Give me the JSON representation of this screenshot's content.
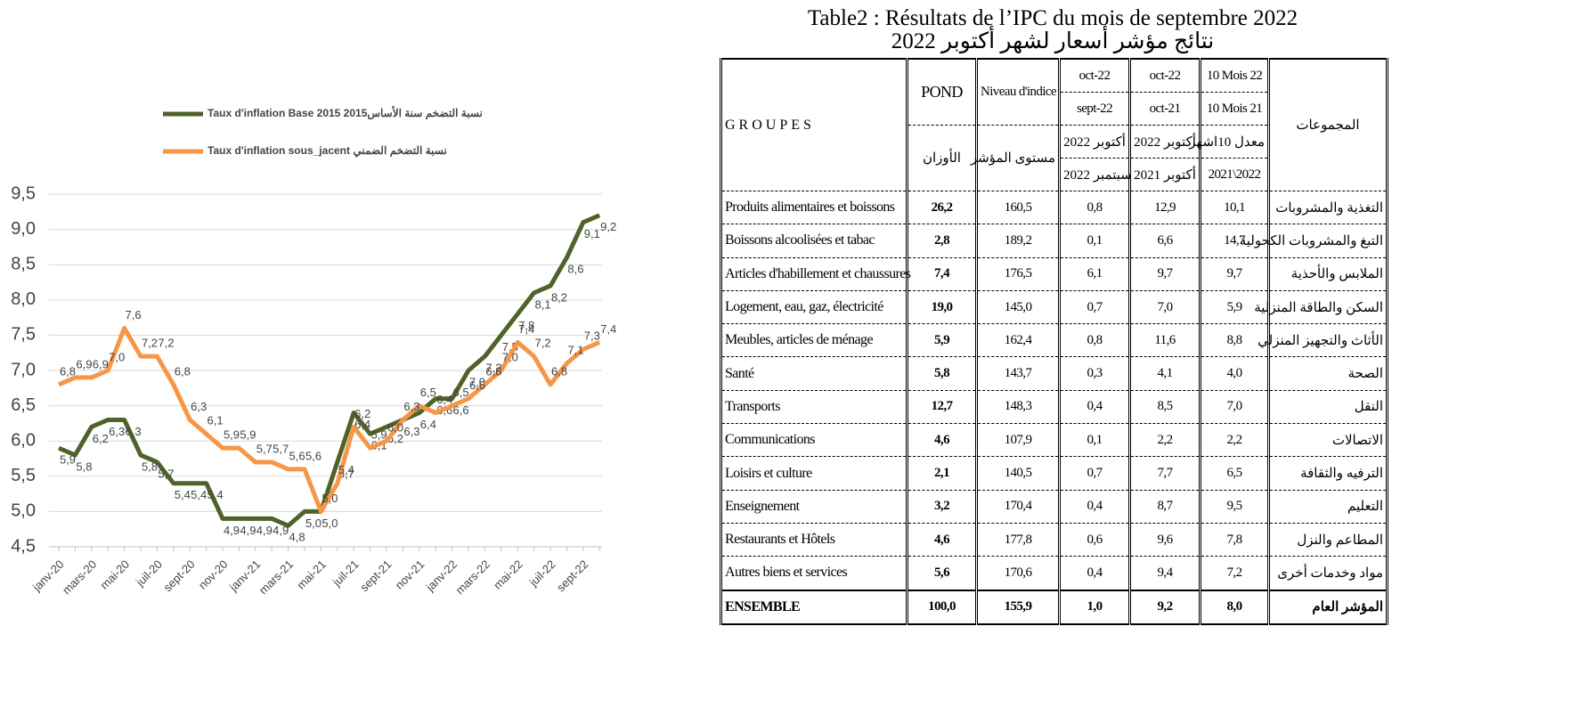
{
  "chart_data": {
    "type": "line",
    "categories": [
      "janv-20",
      null,
      "mars-20",
      null,
      "mai-20",
      null,
      "juil-20",
      null,
      "sept-20",
      null,
      "nov-20",
      null,
      "janv-21",
      null,
      "mars-21",
      null,
      "mai-21",
      null,
      "juil-21",
      null,
      "sept-21",
      null,
      "nov-21",
      null,
      "janv-22",
      null,
      "mars-22",
      null,
      "mai-22",
      null,
      "juil-22",
      null,
      "sept-22",
      null
    ],
    "series": [
      {
        "name": "Taux d'inflation Base 2015 2015نسبة التضخم سنة الأساس",
        "color": "#4f6228",
        "values": [
          5.9,
          5.8,
          6.2,
          6.3,
          6.3,
          5.8,
          5.7,
          5.4,
          5.4,
          5.4,
          4.9,
          4.9,
          4.9,
          4.9,
          4.8,
          5.0,
          5.0,
          5.7,
          6.4,
          6.1,
          6.2,
          6.3,
          6.4,
          6.6,
          6.6,
          7.0,
          7.2,
          7.5,
          7.8,
          8.1,
          8.2,
          8.6,
          9.1,
          9.2
        ],
        "value_labels": [
          "5,9",
          "5,8",
          "6,2",
          "6,3",
          "6,3",
          "5,8",
          "5,7",
          "5,4",
          "5,4",
          "5,4",
          "4,9",
          "4,9",
          "4,9",
          "4,9",
          "4,8",
          "5,0",
          "5,0",
          "5,7",
          "6,4",
          "6,1",
          "6,2",
          "6,3",
          "6,4",
          "6,6",
          "6,6",
          "7,0",
          "7,2",
          "7,5",
          "7,8",
          "8,1",
          "8,2",
          "8,6",
          "9,1",
          "9,2"
        ]
      },
      {
        "name": "Taux d'inflation sous_jacent نسبة التضخم الضمني",
        "color": "#f79646",
        "values": [
          6.8,
          6.9,
          6.9,
          7.0,
          7.6,
          7.2,
          7.2,
          6.8,
          6.3,
          6.1,
          5.9,
          5.9,
          5.7,
          5.7,
          5.6,
          5.6,
          5.0,
          5.4,
          6.2,
          5.9,
          6.0,
          6.3,
          6.5,
          6.4,
          6.5,
          6.6,
          6.8,
          7.0,
          7.4,
          7.2,
          6.8,
          7.1,
          7.3,
          7.4
        ],
        "value_labels": [
          "6,8",
          "6,9",
          "6,9",
          "7,0",
          "7,6",
          "7,2",
          "7,2",
          "6,8",
          "6,3",
          "6,1",
          "5,9",
          "5,9",
          "5,7",
          "5,7",
          "5,6",
          "5,6",
          "5,0",
          "5,4",
          "6,2",
          "5,9",
          "6,0",
          "6,3",
          "6,5",
          "6,4",
          "6,5",
          "6,6",
          "6,8",
          "7,0",
          "7,4",
          "7,2",
          "6,8",
          "7,1",
          "7,3",
          "7,4"
        ]
      }
    ],
    "ylim": [
      4.5,
      9.5
    ],
    "yticks": [
      {
        "value": 4.5,
        "label": "4,5"
      },
      {
        "value": 5.0,
        "label": "5,0"
      },
      {
        "value": 5.5,
        "label": "5,5"
      },
      {
        "value": 6.0,
        "label": "6,0"
      },
      {
        "value": 6.5,
        "label": "6,5"
      },
      {
        "value": 7.0,
        "label": "7,0"
      },
      {
        "value": 7.5,
        "label": "7,5"
      },
      {
        "value": 8.0,
        "label": "8,0"
      },
      {
        "value": 8.5,
        "label": "8,5"
      },
      {
        "value": 9.0,
        "label": "9,0"
      },
      {
        "value": 9.5,
        "label": "9,5"
      }
    ],
    "grid": true,
    "legend": "top"
  },
  "table": {
    "title": "Table2 : Résultats de l’IPC du mois de septembre 2022",
    "subtitle": "نتائج مؤشر أسعار لشهر أكتوبر 2022",
    "header": {
      "groupes": "GROUPES",
      "pond": "POND",
      "pond_ar": "الأوزان",
      "niveau": "Niveau d'indice",
      "niveau_ar": "مستوى المؤشر",
      "cols": [
        [
          "oct-22",
          "sept-22",
          "أكتوبر 2022",
          "سبتمبر 2022"
        ],
        [
          "oct-22",
          "oct-21",
          "أكتوبر 2022",
          "أكتوبر 2021"
        ],
        [
          "10 Mois 22",
          "10 Mois 21",
          "معدل 10اشهر",
          "2021\\2022"
        ]
      ],
      "groupes_ar": "المجموعات"
    },
    "rows": [
      [
        "Produits alimentaires et boissons",
        "26,2",
        "160,5",
        "0,8",
        "12,9",
        "10,1",
        "التغذية والمشروبات"
      ],
      [
        "Boissons alcoolisées et tabac",
        "2,8",
        "189,2",
        "0,1",
        "6,6",
        "14,7",
        "التبغ والمشروبات الكحولية"
      ],
      [
        "Articles d'habillement et chaussures",
        "7,4",
        "176,5",
        "6,1",
        "9,7",
        "9,7",
        "الملابس والأحذية"
      ],
      [
        "Logement, eau, gaz, électricité",
        "19,0",
        "145,0",
        "0,7",
        "7,0",
        "5,9",
        "السكن والطاقة المنزلية"
      ],
      [
        "Meubles, articles de ménage",
        "5,9",
        "162,4",
        "0,8",
        "11,6",
        "8,8",
        "الأثاث والتجهيز المنزلي"
      ],
      [
        "Santé",
        "5,8",
        "143,7",
        "0,3",
        "4,1",
        "4,0",
        "الصحة"
      ],
      [
        "Transports",
        "12,7",
        "148,3",
        "0,4",
        "8,5",
        "7,0",
        "النقل"
      ],
      [
        "Communications",
        "4,6",
        "107,9",
        "0,1",
        "2,2",
        "2,2",
        "الاتصالات"
      ],
      [
        "Loisirs et culture",
        "2,1",
        "140,5",
        "0,7",
        "7,7",
        "6,5",
        "الترفيه والثقافة"
      ],
      [
        "Enseignement",
        "3,2",
        "170,4",
        "0,4",
        "8,7",
        "9,5",
        "التعليم"
      ],
      [
        "Restaurants et Hôtels",
        "4,6",
        "177,8",
        "0,6",
        "9,6",
        "7,8",
        "المطاعم والنزل"
      ],
      [
        "Autres biens et services",
        "5,6",
        "170,6",
        "0,4",
        "9,4",
        "7,2",
        "مواد وخدمات أخرى"
      ],
      [
        "ENSEMBLE",
        "100,0",
        "155,9",
        "1,0",
        "9,2",
        "8,0",
        "المؤشر العام"
      ]
    ]
  }
}
